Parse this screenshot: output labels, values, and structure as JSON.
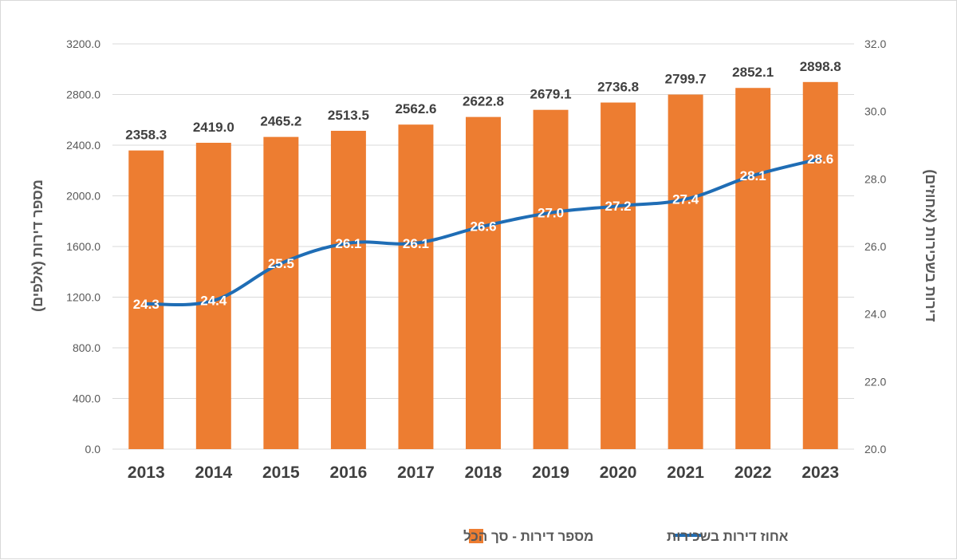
{
  "chart_data": {
    "type": "bar",
    "categories": [
      "2013",
      "2014",
      "2015",
      "2016",
      "2017",
      "2018",
      "2019",
      "2020",
      "2021",
      "2022",
      "2023"
    ],
    "series": [
      {
        "name": "מספר דירות - סך הכל",
        "chart_type": "bar",
        "axis": "left",
        "color": "#ED7D31",
        "values": [
          2358.3,
          2419.0,
          2465.2,
          2513.5,
          2562.6,
          2622.8,
          2679.1,
          2736.8,
          2799.7,
          2852.1,
          2898.8
        ],
        "labels": [
          "2358.3",
          "2419.0",
          "2465.2",
          "2513.5",
          "2562.6",
          "2622.8",
          "2679.1",
          "2736.8",
          "2799.7",
          "2852.1",
          "2898.8"
        ]
      },
      {
        "name": "אחוז דירות בשכירות",
        "chart_type": "line",
        "axis": "right",
        "color": "#1F6DB5",
        "values": [
          24.3,
          24.4,
          25.5,
          26.1,
          26.1,
          26.6,
          27.0,
          27.2,
          27.4,
          28.1,
          28.6
        ],
        "labels": [
          "24.3",
          "24.4",
          "25.5",
          "26.1",
          "26.1",
          "26.6",
          "27.0",
          "27.2",
          "27.4",
          "28.1",
          "28.6"
        ]
      }
    ],
    "ylabel": "מספר דירות (אלפים)",
    "y2label": "דירות בשכירות (אחוזים)",
    "ylim": [
      0,
      3200
    ],
    "y2lim": [
      20,
      32
    ],
    "yticks": [
      "0.0",
      "400.0",
      "800.0",
      "1200.0",
      "1600.0",
      "2000.0",
      "2400.0",
      "2800.0",
      "3200.0"
    ],
    "y2ticks": [
      "20.0",
      "22.0",
      "24.0",
      "26.0",
      "28.0",
      "30.0",
      "32.0"
    ],
    "grid": true,
    "legend": "bottom"
  }
}
